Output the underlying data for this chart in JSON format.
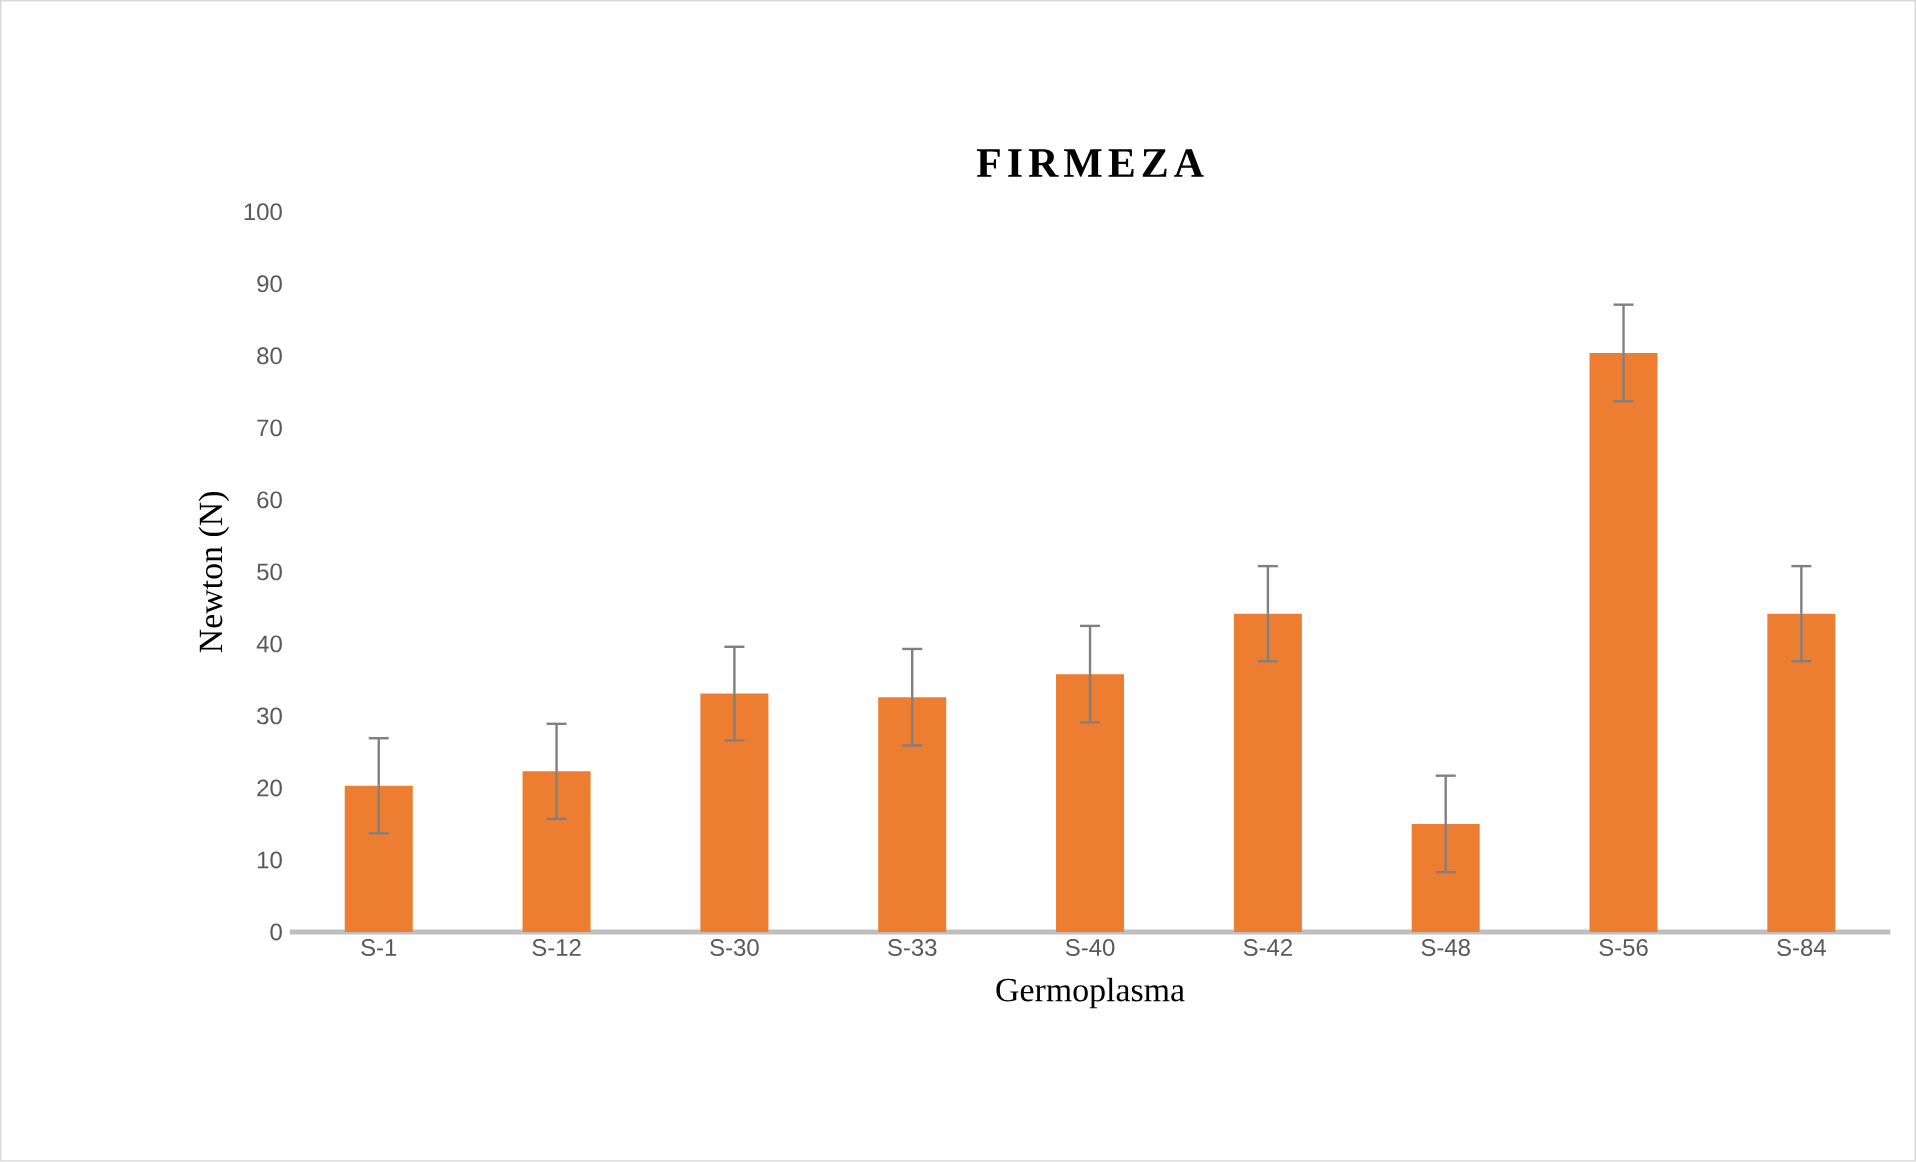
{
  "chart_data": {
    "type": "bar",
    "title": "FIRMEZA",
    "xlabel": "Germoplasma",
    "ylabel": "Newton  (N)",
    "categories": [
      "S-1",
      "S-12",
      "S-30",
      "S-33",
      "S-40",
      "S-42",
      "S-48",
      "S-56",
      "S-84"
    ],
    "values": [
      20.3,
      22.3,
      33.1,
      32.6,
      35.8,
      44.2,
      15.0,
      80.4,
      44.2
    ],
    "errors": [
      6.6,
      6.6,
      6.5,
      6.7,
      6.7,
      6.6,
      6.7,
      6.7,
      6.6
    ],
    "color": "#ed7d31",
    "ylim": [
      0,
      100
    ],
    "yticks": [
      0,
      10,
      20,
      30,
      40,
      50,
      60,
      70,
      80,
      90,
      100
    ],
    "grid": false
  }
}
